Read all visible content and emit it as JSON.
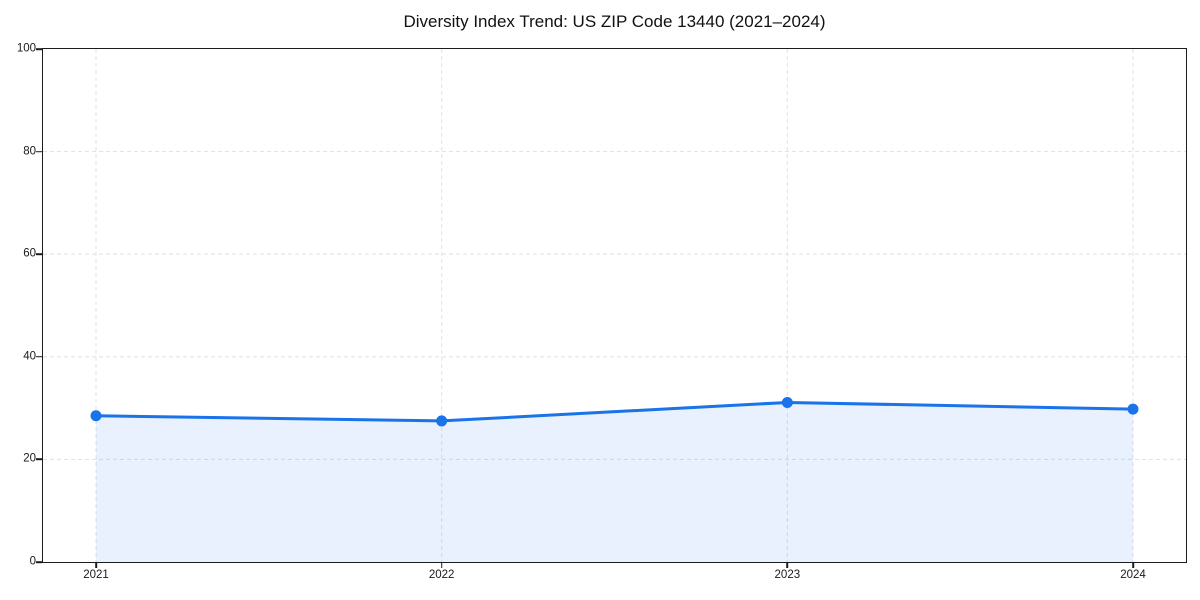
{
  "chart_data": {
    "type": "area",
    "title": "Diversity Index Trend: US ZIP Code 13440 (2021–2024)",
    "categories": [
      "2021",
      "2022",
      "2023",
      "2024"
    ],
    "series": [
      {
        "name": "Diversity Index",
        "values": [
          28.5,
          27.5,
          31.1,
          29.8
        ]
      }
    ],
    "xlabel": "",
    "ylabel": "",
    "ylim": [
      0,
      100
    ],
    "yticks": [
      0,
      20,
      40,
      60,
      80,
      100
    ],
    "grid": true,
    "grid_style": "dashed",
    "legend": false,
    "marker": "circle",
    "colors": {
      "line": "#1a73e8",
      "fill": "#1a73e8",
      "fill_opacity": 0.1,
      "grid": "#e4e4e4",
      "axis": "#1c1c1c",
      "text": "#1a1a1a",
      "background": "#ffffff"
    }
  }
}
